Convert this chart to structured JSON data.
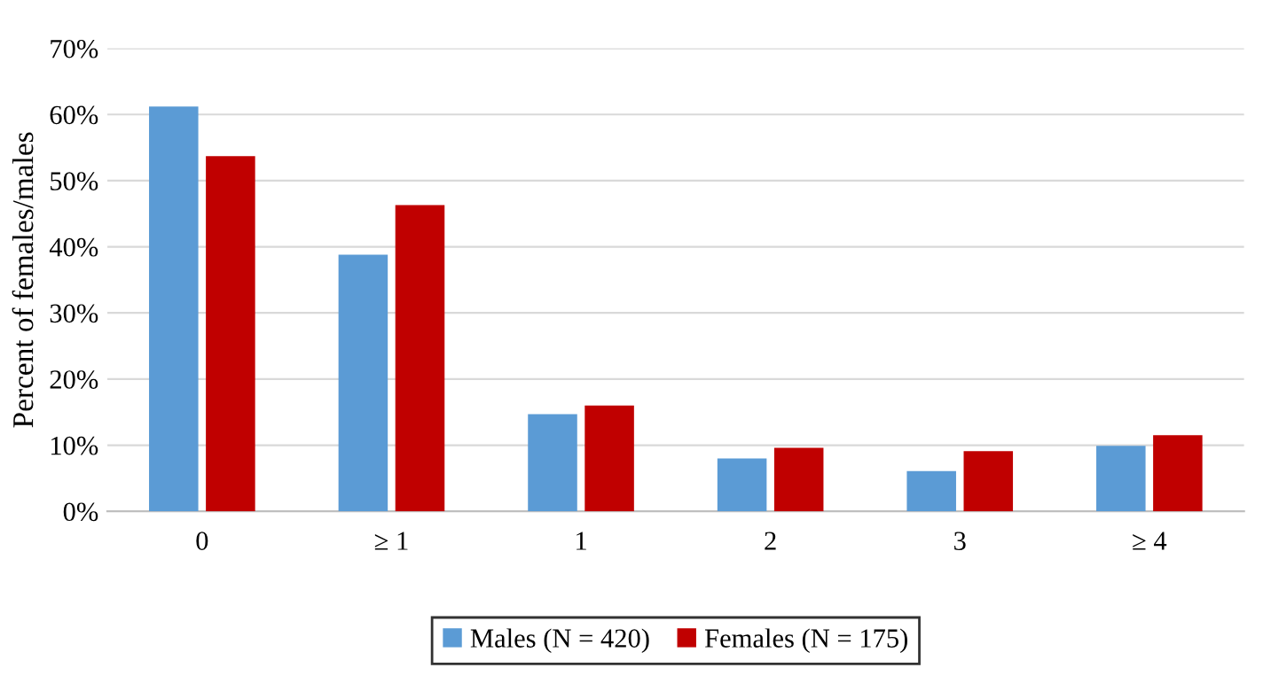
{
  "chart_data": {
    "type": "bar",
    "ylabel": "Percent of females/males",
    "categories": [
      "0",
      "≥ 1",
      "1",
      "2",
      "3",
      "≥ 4"
    ],
    "series": [
      {
        "name": "Males (N = 420)",
        "color": "#5b9bd5",
        "values": [
          61.2,
          38.8,
          14.7,
          8.0,
          6.1,
          9.9
        ]
      },
      {
        "name": "Females (N = 175)",
        "color": "#c00000",
        "values": [
          53.7,
          46.3,
          16.0,
          9.6,
          9.1,
          11.5
        ]
      }
    ],
    "ylim": [
      0,
      70
    ],
    "yticks": [
      {
        "value": 0,
        "label": "0%"
      },
      {
        "value": 10,
        "label": "10%"
      },
      {
        "value": 20,
        "label": "20%"
      },
      {
        "value": 30,
        "label": "30%"
      },
      {
        "value": 40,
        "label": "40%"
      },
      {
        "value": 50,
        "label": "50%"
      },
      {
        "value": 60,
        "label": "60%"
      },
      {
        "value": 70,
        "label": "70%"
      }
    ],
    "grid": "y",
    "legend": "bottom"
  }
}
